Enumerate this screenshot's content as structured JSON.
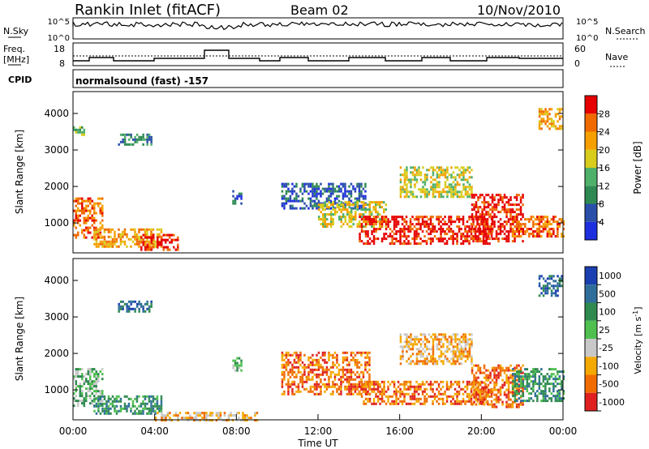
{
  "header": {
    "station": "Rankin Inlet (fitACF)",
    "beam": "Beam 02",
    "date": "10/Nov/2010"
  },
  "nsky_panel": {
    "left_label": "N.Sky",
    "right_label": "N.Search",
    "left_ticks": [
      "10^5",
      "10^0"
    ],
    "right_ticks": [
      "10^5",
      "10^0"
    ]
  },
  "freq_panel": {
    "left_label_line1": "Freq.",
    "left_label_line2": "[MHz]",
    "right_label": "Nave",
    "left_ticks": [
      "18",
      "8"
    ],
    "right_ticks": [
      "60",
      "0"
    ]
  },
  "cpid_panel": {
    "label": "CPID",
    "text": "normalsound (fast) -157"
  },
  "colors": {
    "power_scale": [
      "#1e2fe0",
      "#2a4fa8",
      "#2e8a52",
      "#4fb06a",
      "#d8cc1c",
      "#f5a000",
      "#f06a00",
      "#e60000"
    ],
    "velocity_scale": [
      "#1a3fb0",
      "#2f6e9a",
      "#2f8a50",
      "#4fc050",
      "#c8c8c8",
      "#f5a800",
      "#f06c00",
      "#e02020"
    ]
  },
  "chart_data": [
    {
      "type": "heatmap",
      "name": "power",
      "ylabel": "Slant Range [km]",
      "y_ticks": [
        "1000",
        "2000",
        "3000",
        "4000"
      ],
      "y_tick_values": [
        1000,
        2000,
        3000,
        4000
      ],
      "ylim": [
        180,
        4600
      ],
      "xlim_hours": [
        0,
        24
      ],
      "colorbar": {
        "label": "Power [dB]",
        "ticks": [
          "4",
          "8",
          "12",
          "16",
          "20",
          "24",
          "28"
        ],
        "range": [
          0,
          32
        ]
      },
      "regions": [
        {
          "t0": 0.0,
          "t1": 1.4,
          "r0": 600,
          "r1": 1700,
          "level": 6
        },
        {
          "t0": 1.0,
          "t1": 4.3,
          "r0": 350,
          "r1": 850,
          "level": 5
        },
        {
          "t0": 3.3,
          "t1": 5.1,
          "r0": 250,
          "r1": 700,
          "level": 7
        },
        {
          "t0": 2.2,
          "t1": 3.8,
          "r0": 3150,
          "r1": 3450,
          "level": 2
        },
        {
          "t0": 0.0,
          "t1": 0.5,
          "r0": 3450,
          "r1": 3650,
          "level": 3
        },
        {
          "t0": 7.8,
          "t1": 8.2,
          "r0": 1550,
          "r1": 1900,
          "level": 1
        },
        {
          "t0": 10.2,
          "t1": 14.3,
          "r0": 1400,
          "r1": 2100,
          "level": 1
        },
        {
          "t0": 12.0,
          "t1": 15.3,
          "r0": 900,
          "r1": 1600,
          "level": 4
        },
        {
          "t0": 14.0,
          "t1": 20.5,
          "r0": 450,
          "r1": 1200,
          "level": 7
        },
        {
          "t0": 16.0,
          "t1": 19.5,
          "r0": 1700,
          "r1": 2550,
          "level": 4
        },
        {
          "t0": 19.5,
          "t1": 22.0,
          "r0": 500,
          "r1": 1800,
          "level": 7
        },
        {
          "t0": 21.5,
          "t1": 24.0,
          "r0": 650,
          "r1": 1200,
          "level": 6
        },
        {
          "t0": 22.8,
          "t1": 23.9,
          "r0": 3600,
          "r1": 4150,
          "level": 5
        }
      ]
    },
    {
      "type": "heatmap",
      "name": "velocity",
      "ylabel": "Slant Range [km]",
      "xlabel": "Time UT",
      "x_ticks": [
        "00:00",
        "04:00",
        "08:00",
        "12:00",
        "16:00",
        "20:00",
        "00:00"
      ],
      "x_tick_values": [
        0,
        4,
        8,
        12,
        16,
        20,
        24
      ],
      "y_ticks": [
        "1000",
        "2000",
        "3000",
        "4000"
      ],
      "y_tick_values": [
        1000,
        2000,
        3000,
        4000
      ],
      "ylim": [
        180,
        4600
      ],
      "xlim_hours": [
        0,
        24
      ],
      "colorbar": {
        "label": "Velocity [m s",
        "label_exponent": "-1",
        "label_close": "]",
        "ticks": [
          "1000",
          "500",
          "100",
          "25",
          "-25",
          "-100",
          "-500",
          "-1000"
        ],
        "range": [
          1200,
          -1200
        ]
      },
      "regions": [
        {
          "t0": 0.0,
          "t1": 1.4,
          "r0": 600,
          "r1": 1600,
          "level": 3
        },
        {
          "t0": 1.0,
          "t1": 4.3,
          "r0": 350,
          "r1": 850,
          "level": 2
        },
        {
          "t0": 4.0,
          "t1": 9.0,
          "r0": 200,
          "r1": 400,
          "level": 5
        },
        {
          "t0": 2.2,
          "t1": 3.8,
          "r0": 3150,
          "r1": 3450,
          "level": 1
        },
        {
          "t0": 7.8,
          "t1": 8.2,
          "r0": 1550,
          "r1": 1900,
          "level": 3
        },
        {
          "t0": 10.2,
          "t1": 14.5,
          "r0": 900,
          "r1": 2050,
          "level": 6
        },
        {
          "t0": 14.0,
          "t1": 20.5,
          "r0": 650,
          "r1": 1250,
          "level": 6
        },
        {
          "t0": 16.0,
          "t1": 19.5,
          "r0": 1750,
          "r1": 2550,
          "level": 5
        },
        {
          "t0": 19.5,
          "t1": 22.0,
          "r0": 550,
          "r1": 1700,
          "level": 6
        },
        {
          "t0": 21.5,
          "t1": 24.0,
          "r0": 700,
          "r1": 1600,
          "level": 2
        },
        {
          "t0": 22.8,
          "t1": 23.9,
          "r0": 3600,
          "r1": 4150,
          "level": 1
        }
      ]
    }
  ]
}
